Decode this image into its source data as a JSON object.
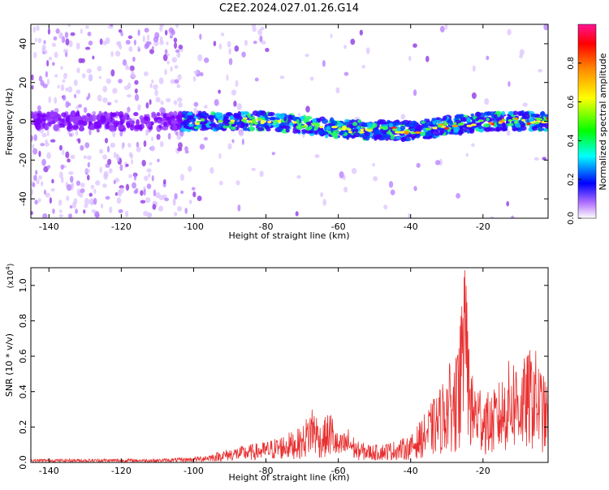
{
  "chart_data": [
    {
      "type": "heatmap",
      "title": "C2E2.2024.027.01.26.G14",
      "xlabel": "Height of straight line (km)",
      "ylabel": "Frequency (Hz)",
      "xlim": [
        -145,
        -2
      ],
      "ylim": [
        -50,
        50
      ],
      "x_ticks": [
        -140,
        -120,
        -100,
        -80,
        -60,
        -40,
        -20
      ],
      "y_ticks": [
        -40,
        -20,
        0,
        20,
        40
      ],
      "colorbar": {
        "label": "Normalized spectral amplitude",
        "range": [
          0,
          1
        ],
        "ticks": [
          0.0,
          0.2,
          0.4,
          0.6,
          0.8
        ],
        "colormap": [
          "#ffffff",
          "#8b00ff",
          "#0000ff",
          "#00ffff",
          "#00ff00",
          "#ffff00",
          "#ff8000",
          "#ff0000",
          "#ff1493"
        ]
      },
      "ridge": [
        {
          "x": -103,
          "y": 0
        },
        {
          "x": -80,
          "y": 0
        },
        {
          "x": -60,
          "y": -4
        },
        {
          "x": -40,
          "y": -5
        },
        {
          "x": -20,
          "y": 0
        },
        {
          "x": -2,
          "y": 0
        }
      ]
    },
    {
      "type": "line",
      "xlabel": "Height of straight line (km)",
      "ylabel": "SNR (10 * v/v)",
      "y_multiplier": "(x10",
      "y_multiplier_exp": "4",
      "y_multiplier_close": ")",
      "xlim": [
        -145,
        -2
      ],
      "ylim": [
        0,
        1.1
      ],
      "x_ticks": [
        -140,
        -120,
        -100,
        -80,
        -60,
        -40,
        -20
      ],
      "y_ticks": [
        0.0,
        0.2,
        0.4,
        0.6,
        0.8,
        1.0
      ],
      "line_color": "#e83030",
      "series": [
        {
          "values": [
            [
              -145,
              0.02
            ],
            [
              -140,
              0.02
            ],
            [
              -130,
              0.02
            ],
            [
              -120,
              0.02
            ],
            [
              -110,
              0.02
            ],
            [
              -100,
              0.03
            ],
            [
              -95,
              0.05
            ],
            [
              -90,
              0.08
            ],
            [
              -85,
              0.1
            ],
            [
              -80,
              0.12
            ],
            [
              -75,
              0.16
            ],
            [
              -70,
              0.2
            ],
            [
              -67,
              0.35
            ],
            [
              -65,
              0.22
            ],
            [
              -62,
              0.3
            ],
            [
              -60,
              0.15
            ],
            [
              -57,
              0.2
            ],
            [
              -55,
              0.12
            ],
            [
              -50,
              0.1
            ],
            [
              -45,
              0.12
            ],
            [
              -40,
              0.15
            ],
            [
              -36,
              0.28
            ],
            [
              -32,
              0.42
            ],
            [
              -30,
              0.55
            ],
            [
              -27,
              0.6
            ],
            [
              -25,
              1.1
            ],
            [
              -23,
              0.5
            ],
            [
              -20,
              0.45
            ],
            [
              -18,
              0.38
            ],
            [
              -15,
              0.48
            ],
            [
              -12,
              0.62
            ],
            [
              -9,
              0.58
            ],
            [
              -6,
              0.68
            ],
            [
              -3,
              0.48
            ],
            [
              -2,
              0.42
            ]
          ]
        }
      ]
    }
  ]
}
